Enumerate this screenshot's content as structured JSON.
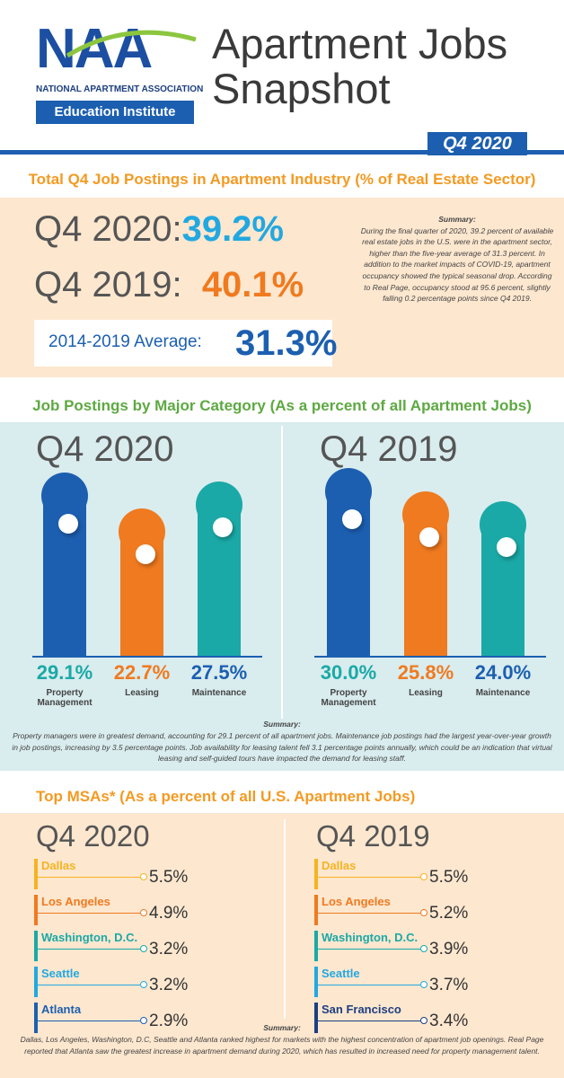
{
  "header": {
    "logo_letters": "NAA",
    "logo_association": "NATIONAL APARTMENT ASSOCIATION",
    "logo_institute": "Education Institute",
    "title_line1": "Apartment Jobs",
    "title_line2": "Snapshot",
    "quarter": "Q4 2020"
  },
  "colors": {
    "brand_blue": "#1c5fb0",
    "bright_blue": "#22a8e0",
    "orange": "#f07a1f",
    "teal": "#1aa9a6",
    "green": "#5da942",
    "peach_bg": "#fde7cf",
    "aqua_bg": "#d9ecee"
  },
  "total_postings": {
    "title": "Total Q4 Job Postings in Apartment Industry (% of Real Estate Sector)",
    "q4_2020_label": "Q4 2020:",
    "q4_2020_value": "39.2%",
    "q4_2019_label": "Q4 2019:",
    "q4_2019_value": "40.1%",
    "average_label": "2014-2019 Average:",
    "average_value": "31.3%",
    "summary_head": "Summary:",
    "summary_text": "During the final quarter of 2020, 39.2 percent of available real estate jobs in the U.S. were in the apartment sector, higher than the five-year average of 31.3 percent. In addition to the market impacts of COVID-19, apartment occupancy showed the typical seasonal drop. According to Real Page, occupancy stood at 95.6 percent, slightly falling 0.2 percentage points since Q4 2019."
  },
  "by_category": {
    "title": "Job Postings by Major Category (As a percent of all Apartment Jobs)",
    "summary_head": "Summary:",
    "summary_text": "Property managers were in greatest demand, accounting for 29.1 percent of all apartment jobs. Maintenance job postings had the largest year-over-year growth in job postings, increasing by 3.5 percentage points. Job availability for leasing talent fell 3.1 percentage points annually, which could be an indication that virtual leasing and self-guided tours have impacted the demand for leasing staff."
  },
  "chart_data": [
    {
      "type": "bar",
      "title": "Q4 2020",
      "categories": [
        "Property Management",
        "Leasing",
        "Maintenance"
      ],
      "values": [
        29.1,
        22.7,
        27.5
      ],
      "labels": [
        "29.1%",
        "22.7%",
        "27.5%"
      ],
      "colors": [
        "#1c5fb0",
        "#f07a1f",
        "#1aa9a6"
      ],
      "label_colors": [
        "#1aa9a6",
        "#f07a1f",
        "#1c5fb0"
      ]
    },
    {
      "type": "bar",
      "title": "Q4 2019",
      "categories": [
        "Property Management",
        "Leasing",
        "Maintenance"
      ],
      "values": [
        30.0,
        25.8,
        24.0
      ],
      "labels": [
        "30.0%",
        "25.8%",
        "24.0%"
      ],
      "colors": [
        "#1c5fb0",
        "#f07a1f",
        "#1aa9a6"
      ],
      "label_colors": [
        "#1aa9a6",
        "#f07a1f",
        "#1c5fb0"
      ]
    }
  ],
  "category_labels": [
    [
      "Property",
      "Management"
    ],
    [
      "Leasing"
    ],
    [
      "Maintenance"
    ]
  ],
  "msa": {
    "title": "Top MSAs* (As a percent of all U.S. Apartment Jobs)",
    "q4_2020": {
      "title": "Q4 2020",
      "items": [
        {
          "name": "Dallas",
          "value": "5.5%",
          "color": "#f6b320"
        },
        {
          "name": "Los Angeles",
          "value": "4.9%",
          "color": "#f07a1f"
        },
        {
          "name": "Washington, D.C.",
          "value": "3.2%",
          "color": "#1aa9a6"
        },
        {
          "name": "Seattle",
          "value": "3.2%",
          "color": "#22a8e0"
        },
        {
          "name": "Atlanta",
          "value": "2.9%",
          "color": "#1c5fb0"
        }
      ]
    },
    "q4_2019": {
      "title": "Q4 2019",
      "items": [
        {
          "name": "Dallas",
          "value": "5.5%",
          "color": "#f6b320"
        },
        {
          "name": "Los Angeles",
          "value": "5.2%",
          "color": "#f07a1f"
        },
        {
          "name": "Washington, D.C.",
          "value": "3.9%",
          "color": "#1aa9a6"
        },
        {
          "name": "Seattle",
          "value": "3.7%",
          "color": "#22a8e0"
        },
        {
          "name": "San Francisco",
          "value": "3.4%",
          "color": "#1c3f80"
        }
      ]
    },
    "summary_head": "Summary:",
    "summary_text": "Dallas, Los Angeles, Washington, D.C, Seattle and Atlanta ranked highest for markets with the highest concentration of apartment job openings. Real Page reported that Atlanta saw the greatest increase in apartment demand during 2020, which has resulted in increased need for property management talent."
  }
}
